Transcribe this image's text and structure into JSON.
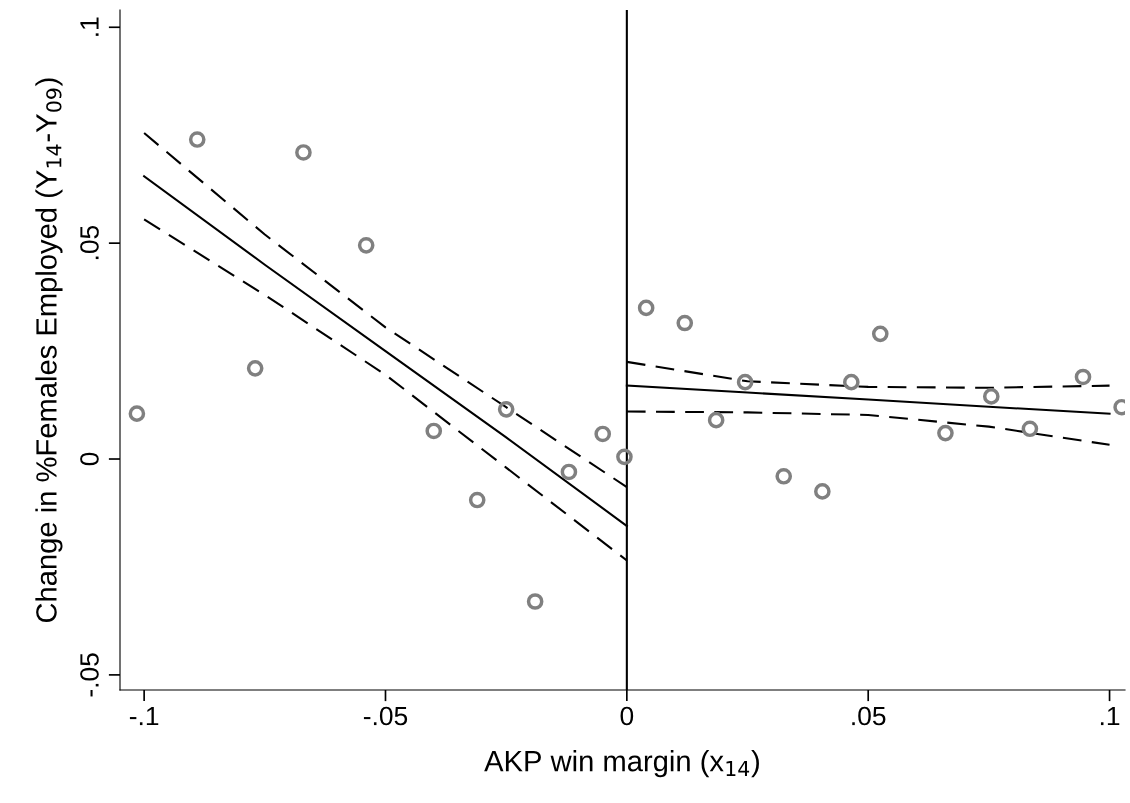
{
  "chart_data": {
    "type": "scatter",
    "xlabel": "AKP win margin (x$_{14}$)",
    "ylabel": "Change in %Females Employed (Y$_{14}$-Y$_{09}$)",
    "xlim": [
      -0.105,
      0.1032
    ],
    "ylim": [
      -0.0535,
      0.104
    ],
    "xticks": [
      {
        "value": -0.1,
        "label": "-.1"
      },
      {
        "value": -0.05,
        "label": "-.05"
      },
      0,
      {
        "value": 0.05,
        "label": ".05"
      },
      {
        "value": 0.1,
        "label": ".1"
      }
    ],
    "yticks": [
      {
        "value": -0.05,
        "label": "-.05"
      },
      0,
      {
        "value": 0.05,
        "label": ".05"
      },
      {
        "value": 0.1,
        "label": ".1"
      }
    ],
    "grid": false,
    "series": [
      {
        "color": "#808080",
        "marker": "circle",
        "x": [
          -0.1015,
          -0.089,
          -0.077,
          -0.067,
          -0.054,
          -0.04,
          -0.031,
          -0.025,
          -0.019,
          -0.012,
          -0.005,
          -0.0005,
          0.004,
          0.012,
          0.0185,
          0.0245,
          0.0325,
          0.0405,
          0.0465,
          0.0525,
          0.066,
          0.0755,
          0.0835,
          0.0945,
          0.1025
        ],
        "values": [
          0.0105,
          0.074,
          0.021,
          0.071,
          0.0495,
          0.0065,
          -0.0095,
          0.0115,
          -0.033,
          -0.003,
          0.0058,
          0.0005,
          0.035,
          0.0315,
          0.009,
          0.0178,
          -0.004,
          -0.0075,
          0.0178,
          0.029,
          0.006,
          0.0145,
          0.007,
          0.019,
          0.012
        ]
      },
      {
        "type": "line",
        "color": "#000000",
        "line_style": "solid",
        "x": [
          -0.1,
          -0.075,
          -0.05,
          -0.025,
          0
        ],
        "values": [
          0.0655,
          0.045,
          0.025,
          0.005,
          -0.0155
        ]
      },
      {
        "type": "line",
        "color": "#000000",
        "line_style": "dashed",
        "x": [
          -0.1,
          -0.075,
          -0.05,
          -0.025,
          0
        ],
        "values": [
          0.0755,
          0.052,
          0.0305,
          0.012,
          -0.0065
        ]
      },
      {
        "type": "line",
        "color": "#000000",
        "line_style": "dashed",
        "x": [
          -0.1,
          -0.075,
          -0.05,
          -0.025,
          0
        ],
        "values": [
          0.0555,
          0.038,
          0.0195,
          -0.002,
          -0.0235
        ]
      },
      {
        "type": "line",
        "color": "#000000",
        "line_style": "solid",
        "x": [
          0,
          0.025,
          0.05,
          0.075,
          0.1
        ],
        "values": [
          0.017,
          0.0154,
          0.0138,
          0.0121,
          0.0105
        ]
      },
      {
        "type": "line",
        "color": "#000000",
        "line_style": "dashed",
        "x": [
          0,
          0.025,
          0.05,
          0.075,
          0.1
        ],
        "values": [
          0.0225,
          0.018,
          0.0167,
          0.0165,
          0.017
        ]
      },
      {
        "type": "line",
        "color": "#000000",
        "line_style": "dashed",
        "x": [
          0,
          0.025,
          0.05,
          0.075,
          0.1
        ],
        "values": [
          0.011,
          0.0108,
          0.0102,
          0.0075,
          0.0033
        ]
      }
    ],
    "ref_lines": [
      {
        "axis": "x",
        "value": 0,
        "color": "#000000",
        "line_style": "solid"
      }
    ]
  }
}
